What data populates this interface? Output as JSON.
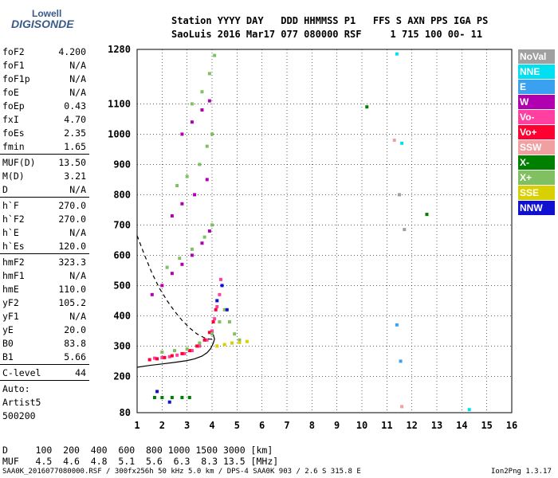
{
  "logo": {
    "line1": "Lowell",
    "line2": "DIGISONDE"
  },
  "header": {
    "line1": "Station YYYY DAY   DDD HHMMSS P1   FFS S AXN PPS IGA PS",
    "line2": "SaoLuis 2016 Mar17 077 080000 RSF     1 715 100 00- 11"
  },
  "params": {
    "group1": [
      {
        "label": "foF2",
        "value": "4.200"
      },
      {
        "label": "foF1",
        "value": "N/A"
      },
      {
        "label": "foF1p",
        "value": "N/A"
      },
      {
        "label": "foE",
        "value": "N/A"
      },
      {
        "label": "foEp",
        "value": "0.43"
      },
      {
        "label": "fxI",
        "value": "4.70"
      },
      {
        "label": "foEs",
        "value": "2.35"
      },
      {
        "label": "fmin",
        "value": "1.65"
      }
    ],
    "group2": [
      {
        "label": "MUF(D)",
        "value": "13.50"
      },
      {
        "label": "M(D)",
        "value": "3.21"
      },
      {
        "label": "D",
        "value": "N/A"
      }
    ],
    "group3": [
      {
        "label": "h`F",
        "value": "270.0"
      },
      {
        "label": "h`F2",
        "value": "270.0"
      },
      {
        "label": "h`E",
        "value": "N/A"
      },
      {
        "label": "h`Es",
        "value": "120.0"
      }
    ],
    "group4": [
      {
        "label": "hmF2",
        "value": "323.3"
      },
      {
        "label": "hmF1",
        "value": "N/A"
      },
      {
        "label": "hmE",
        "value": "110.0"
      },
      {
        "label": "yF2",
        "value": "105.2"
      },
      {
        "label": "yF1",
        "value": "N/A"
      },
      {
        "label": "yE",
        "value": "20.0"
      },
      {
        "label": "B0",
        "value": "83.8"
      },
      {
        "label": "B1",
        "value": "5.66"
      }
    ],
    "clevel": {
      "label": "C-level",
      "value": "44"
    },
    "auto": [
      "Auto:",
      "Artist5",
      "500200"
    ]
  },
  "legend": [
    {
      "label": "NoVal",
      "color": "#a0a0a0"
    },
    {
      "label": "NNE",
      "color": "#00e0f0"
    },
    {
      "label": "E",
      "color": "#3aa0f0"
    },
    {
      "label": "W",
      "color": "#b000b0"
    },
    {
      "label": "Vo-",
      "color": "#ff40a0"
    },
    {
      "label": "Vo+",
      "color": "#ff0030"
    },
    {
      "label": "SSW",
      "color": "#f0a0a0"
    },
    {
      "label": "X-",
      "color": "#008000"
    },
    {
      "label": "X+",
      "color": "#80c060"
    },
    {
      "label": "SSE",
      "color": "#d8d000"
    },
    {
      "label": "NNW",
      "color": "#1010d0"
    }
  ],
  "footer": {
    "d_row": "D     100  200  400  600  800 1000 1500 3000 [km]",
    "muf_row": "MUF   4.5  4.6  4.8  5.1  5.6  6.3  8.3 13.5 [MHz]",
    "file_info": "SAA0K_2016077080000.RSF / 300fx256h 50 kHz 5.0 km / DPS-4 SAA0K 903 / 2.6 S 315.8 E",
    "version": "Ion2Png 1.3.17"
  },
  "chart_data": {
    "type": "scatter",
    "xlim": [
      1,
      16
    ],
    "ylim": [
      80,
      1280
    ],
    "x_ticks": [
      "1",
      "2",
      "3",
      "4",
      "5",
      "6",
      "7",
      "8",
      "9",
      "10",
      "11",
      "12",
      "13",
      "14",
      "15",
      "16"
    ],
    "y_ticks": [
      "80",
      "200",
      "300",
      "400",
      "500",
      "600",
      "700",
      "800",
      "900",
      "1000",
      "1100",
      "1280"
    ],
    "y_tick_values": [
      80,
      200,
      300,
      400,
      500,
      600,
      700,
      800,
      900,
      1000,
      1100,
      1280
    ],
    "grid": true,
    "traces": [
      {
        "name": "Vo-",
        "color": "#ff40a0",
        "points": [
          [
            1.7,
            260
          ],
          [
            2.0,
            262
          ],
          [
            2.3,
            265
          ],
          [
            2.6,
            270
          ],
          [
            2.9,
            275
          ],
          [
            3.2,
            285
          ],
          [
            3.5,
            300
          ],
          [
            3.8,
            320
          ],
          [
            4.0,
            350
          ],
          [
            4.1,
            390
          ],
          [
            4.2,
            430
          ],
          [
            4.3,
            470
          ],
          [
            4.35,
            520
          ]
        ]
      },
      {
        "name": "Vo+",
        "color": "#ff0030",
        "points": [
          [
            1.5,
            255
          ],
          [
            1.8,
            258
          ],
          [
            2.1,
            262
          ],
          [
            2.4,
            268
          ],
          [
            2.8,
            275
          ],
          [
            3.1,
            285
          ],
          [
            3.4,
            300
          ],
          [
            3.7,
            320
          ],
          [
            3.9,
            345
          ],
          [
            4.05,
            380
          ],
          [
            4.15,
            420
          ]
        ]
      },
      {
        "name": "X+",
        "color": "#80c060",
        "points": [
          [
            2.0,
            280
          ],
          [
            2.5,
            285
          ],
          [
            3.0,
            290
          ],
          [
            3.5,
            310
          ],
          [
            4.0,
            340
          ],
          [
            4.3,
            380
          ],
          [
            4.5,
            420
          ],
          [
            4.7,
            380
          ],
          [
            4.9,
            340
          ],
          [
            5.1,
            320
          ],
          [
            2.2,
            560
          ],
          [
            2.7,
            590
          ],
          [
            3.2,
            620
          ],
          [
            3.7,
            660
          ],
          [
            4.0,
            700
          ],
          [
            2.6,
            830
          ],
          [
            3.0,
            860
          ],
          [
            3.5,
            900
          ],
          [
            3.8,
            960
          ],
          [
            4.0,
            1000
          ],
          [
            3.2,
            1100
          ],
          [
            3.6,
            1140
          ],
          [
            3.9,
            1200
          ],
          [
            4.1,
            1260
          ]
        ]
      },
      {
        "name": "W",
        "color": "#b000b0",
        "points": [
          [
            1.6,
            470
          ],
          [
            2.0,
            500
          ],
          [
            2.4,
            540
          ],
          [
            2.8,
            570
          ],
          [
            3.2,
            600
          ],
          [
            3.6,
            640
          ],
          [
            3.9,
            680
          ],
          [
            2.4,
            730
          ],
          [
            2.8,
            770
          ],
          [
            3.3,
            800
          ],
          [
            3.8,
            850
          ],
          [
            2.8,
            1000
          ],
          [
            3.2,
            1040
          ],
          [
            3.6,
            1080
          ],
          [
            3.9,
            1110
          ]
        ]
      },
      {
        "name": "SSE",
        "color": "#d8d000",
        "points": [
          [
            4.2,
            300
          ],
          [
            4.5,
            305
          ],
          [
            4.8,
            310
          ],
          [
            5.1,
            312
          ],
          [
            5.4,
            315
          ]
        ]
      },
      {
        "name": "X-",
        "color": "#008000",
        "points": [
          [
            1.7,
            130
          ],
          [
            2.0,
            130
          ],
          [
            2.4,
            130
          ],
          [
            2.8,
            130
          ],
          [
            3.1,
            130
          ],
          [
            10.2,
            1090
          ],
          [
            12.6,
            735
          ]
        ]
      },
      {
        "name": "NNW",
        "color": "#1010d0",
        "points": [
          [
            1.8,
            150
          ],
          [
            4.2,
            450
          ],
          [
            4.4,
            500
          ],
          [
            4.6,
            420
          ],
          [
            2.3,
            115
          ]
        ]
      },
      {
        "name": "NNE",
        "color": "#00e0f0",
        "points": [
          [
            11.4,
            1265
          ],
          [
            11.6,
            970
          ],
          [
            14.3,
            90
          ]
        ]
      },
      {
        "name": "E",
        "color": "#3aa0f0",
        "points": [
          [
            11.55,
            250
          ],
          [
            11.4,
            370
          ]
        ]
      },
      {
        "name": "NoVal",
        "color": "#a0a0a0",
        "points": [
          [
            11.5,
            800
          ],
          [
            11.7,
            685
          ]
        ]
      },
      {
        "name": "SSW",
        "color": "#f0a0a0",
        "points": [
          [
            11.6,
            100
          ],
          [
            11.3,
            980
          ]
        ]
      }
    ],
    "profile_curve": [
      [
        1.0,
        230
      ],
      [
        1.5,
        236
      ],
      [
        2.0,
        241
      ],
      [
        2.5,
        246
      ],
      [
        3.0,
        252
      ],
      [
        3.3,
        258
      ],
      [
        3.6,
        267
      ],
      [
        3.8,
        278
      ],
      [
        3.95,
        292
      ],
      [
        4.05,
        310
      ],
      [
        4.1,
        323
      ],
      [
        4.05,
        338
      ]
    ],
    "dashed_curve": [
      [
        1.0,
        665
      ],
      [
        1.3,
        600
      ],
      [
        1.6,
        540
      ],
      [
        1.9,
        490
      ],
      [
        2.2,
        450
      ],
      [
        2.5,
        415
      ],
      [
        2.8,
        385
      ],
      [
        3.1,
        360
      ],
      [
        3.4,
        340
      ],
      [
        3.7,
        327
      ],
      [
        3.9,
        323
      ],
      [
        4.05,
        323
      ]
    ]
  }
}
